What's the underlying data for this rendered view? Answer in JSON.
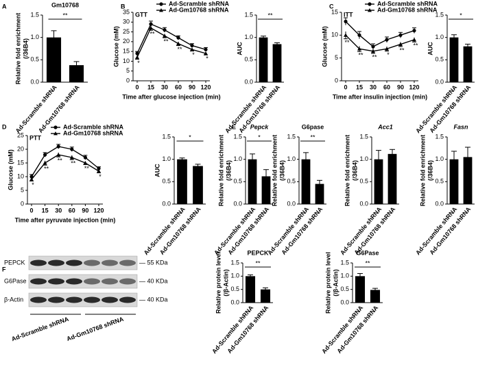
{
  "chart_data": [
    {
      "type": "bar",
      "panel": "A",
      "title": "Gm10768",
      "y_label": [
        "Relative fold enrichment",
        "(/36B4)"
      ],
      "categories": [
        "Ad-Scramble shRNA",
        "Ad-Gm10768 shRNA"
      ],
      "values": [
        1.0,
        0.38
      ],
      "errors": [
        0.15,
        0.08
      ],
      "color": "#000000",
      "ylim": [
        0,
        1.5
      ],
      "yticks": [
        {
          "value": 0,
          "label": "0.0"
        },
        0.5,
        {
          "value": 1,
          "label": "1.0"
        },
        1.5
      ],
      "significance": "**"
    },
    {
      "type": "line",
      "panel": "B",
      "inset_label": "GTT",
      "x_label": "Time after glucose injection (min)",
      "y_label": [
        "Glucose (mM)"
      ],
      "categories": [
        "0",
        "15",
        "30",
        "60",
        "90",
        "120"
      ],
      "series": [
        {
          "name": "Ad-Scramble shRNA",
          "color": "#000000",
          "values": [
            14,
            29,
            26,
            22,
            18,
            16
          ],
          "errors": [
            1,
            1.5,
            1.2,
            1,
            1,
            1
          ]
        },
        {
          "name": "Ad-Gm10768 shRNA",
          "color": "#000000",
          "values": [
            12,
            27,
            23,
            19,
            16,
            14
          ],
          "errors": [
            1,
            1.2,
            1,
            1,
            0.8,
            0.8
          ]
        }
      ],
      "ylim": [
        0,
        35
      ],
      "yticks": [
        0,
        5,
        10,
        15,
        20,
        25,
        30,
        35
      ],
      "point_significance": [
        "*",
        "**",
        "**",
        "**",
        "*",
        "*"
      ]
    },
    {
      "type": "bar",
      "y_label": [
        "AUC"
      ],
      "categories": [
        "Ad-Scramble shRNA",
        "Ad-Gm10768 shRNA"
      ],
      "values": [
        1.0,
        0.85
      ],
      "errors": [
        0.03,
        0.03
      ],
      "color": "#000000",
      "ylim": [
        0,
        1.5
      ],
      "yticks": [
        {
          "value": 0,
          "label": "0.0"
        },
        0.5,
        {
          "value": 1,
          "label": "1.0"
        },
        1.5
      ],
      "significance": "**"
    },
    {
      "type": "line",
      "panel": "C",
      "inset_label": "ITT",
      "x_label": "Time after insulin injection (min)",
      "y_label": [
        "Glucose (mM)"
      ],
      "categories": [
        "0",
        "15",
        "30",
        "60",
        "90",
        "120"
      ],
      "series": [
        {
          "name": "Ad-Scramble shRNA",
          "color": "#000000",
          "values": [
            13,
            10,
            7.5,
            9,
            10,
            11
          ],
          "errors": [
            0.8,
            0.8,
            0.6,
            0.6,
            0.6,
            0.6
          ]
        },
        {
          "name": "Ad-Gm10768 shRNA",
          "color": "#000000",
          "values": [
            10,
            7,
            6.5,
            7,
            8,
            9
          ],
          "errors": [
            0.8,
            0.6,
            0.5,
            0.5,
            0.5,
            0.5
          ]
        }
      ],
      "ylim": [
        0,
        15
      ],
      "yticks": [
        0,
        5,
        10,
        15
      ],
      "point_significance": [
        "**",
        "**",
        "**",
        "*",
        "**",
        "**"
      ]
    },
    {
      "type": "bar",
      "y_label": [
        "AUC"
      ],
      "categories": [
        "Ad-Scramble shRNA",
        "Ad-Gm10768 shRNA"
      ],
      "values": [
        1.0,
        0.8
      ],
      "errors": [
        0.06,
        0.05
      ],
      "color": "#000000",
      "ylim": [
        0,
        1.5
      ],
      "yticks": [
        {
          "value": 0,
          "label": "0.0"
        },
        0.5,
        {
          "value": 1,
          "label": "1.0"
        },
        1.5
      ],
      "significance": "*"
    },
    {
      "type": "line",
      "panel": "D",
      "inset_label": "PTT",
      "x_label": "Time after pyruvate injection (min)",
      "y_label": [
        "Glucose (mM)"
      ],
      "categories": [
        "0",
        "15",
        "30",
        "60",
        "90",
        "120"
      ],
      "series": [
        {
          "name": "Ad-Scramble shRNA",
          "color": "#000000",
          "values": [
            10,
            18,
            21,
            20,
            17,
            13
          ],
          "errors": [
            0.8,
            0.8,
            0.8,
            0.8,
            0.8,
            0.6
          ]
        },
        {
          "name": "Ad-Gm10768 shRNA",
          "color": "#000000",
          "values": [
            9,
            15,
            18,
            17,
            15,
            12
          ],
          "errors": [
            0.6,
            0.8,
            0.8,
            0.8,
            0.6,
            0.6
          ]
        }
      ],
      "ylim": [
        0,
        25
      ],
      "yticks": [
        0,
        5,
        10,
        15,
        20,
        25
      ],
      "point_significance": [
        "*",
        "**",
        "**",
        "**",
        "**",
        "*"
      ]
    },
    {
      "type": "bar",
      "y_label": [
        "AUC"
      ],
      "categories": [
        "Ad-Scramble shRNA",
        "Ad-Gm10768 shRNA"
      ],
      "values": [
        1.0,
        0.85
      ],
      "errors": [
        0.03,
        0.04
      ],
      "color": "#000000",
      "ylim": [
        0,
        1.5
      ],
      "yticks": [
        {
          "value": 0,
          "label": "0.0"
        },
        0.5,
        {
          "value": 1,
          "label": "1.0"
        },
        1.5
      ],
      "significance": "*"
    },
    {
      "type": "bar",
      "panel": "E",
      "title": "Pepck",
      "y_label": [
        "Relative fold enrichment",
        "(/36B4)"
      ],
      "categories": [
        "Ad-Scramble shRNA",
        "Ad-Gm10768 shRNA"
      ],
      "values": [
        1.0,
        0.62
      ],
      "errors": [
        0.12,
        0.15
      ],
      "color": "#000000",
      "ylim": [
        0,
        1.5
      ],
      "yticks": [
        {
          "value": 0,
          "label": "0.0"
        },
        0.5,
        {
          "value": 1,
          "label": "1.0"
        },
        1.5
      ],
      "significance": "*"
    },
    {
      "type": "bar",
      "title": "G6pase",
      "y_label": [
        "Relative fold enrichment",
        "(/36B4)"
      ],
      "categories": [
        "Ad-Scramble shRNA",
        "Ad-Gm10768 shRNA"
      ],
      "values": [
        1.0,
        0.45
      ],
      "errors": [
        0.15,
        0.08
      ],
      "color": "#000000",
      "ylim": [
        0,
        1.5
      ],
      "yticks": [
        {
          "value": 0,
          "label": "0.0"
        },
        0.5,
        {
          "value": 1,
          "label": "1.0"
        },
        1.5
      ],
      "significance": "**"
    },
    {
      "type": "bar",
      "title": "Acc1",
      "y_label": [
        "Relative fold enrichment",
        "(/36B4)"
      ],
      "categories": [
        "Ad-Scramble shRNA",
        "Ad-Gm10768 shRNA"
      ],
      "values": [
        1.0,
        1.12
      ],
      "errors": [
        0.2,
        0.1
      ],
      "color": "#000000",
      "ylim": [
        0,
        1.5
      ],
      "yticks": [
        {
          "value": 0,
          "label": "0.0"
        },
        0.5,
        {
          "value": 1,
          "label": "1.0"
        },
        1.5
      ]
    },
    {
      "type": "bar",
      "title": "Fasn",
      "y_label": [
        "Relative fold enrichment",
        "(/36B4)"
      ],
      "categories": [
        "Ad-Scramble shRNA",
        "Ad-Gm10768 shRNA"
      ],
      "values": [
        1.0,
        1.05
      ],
      "errors": [
        0.18,
        0.22
      ],
      "color": "#000000",
      "ylim": [
        0,
        1.5
      ],
      "yticks": [
        {
          "value": 0,
          "label": "0.0"
        },
        0.5,
        {
          "value": 1,
          "label": "1.0"
        },
        1.5
      ]
    },
    {
      "type": "bar",
      "title": "PEPCK",
      "y_label": [
        "Relative protein level",
        "(/β-Actin)"
      ],
      "categories": [
        "Ad-Scramble shRNA",
        "Ad-Gm10768 shRNA"
      ],
      "values": [
        1.0,
        0.5
      ],
      "errors": [
        0.05,
        0.06
      ],
      "color": "#000000",
      "ylim": [
        0,
        1.5
      ],
      "yticks": [
        {
          "value": 0,
          "label": "0.0"
        },
        0.5,
        {
          "value": 1,
          "label": "1.0"
        },
        1.5
      ],
      "significance": "**"
    },
    {
      "type": "bar",
      "title": "G6Pase",
      "y_label": [
        "Relative protein level",
        "(/β-Actin)"
      ],
      "categories": [
        "Ad-Scramble shRNA",
        "Ad-Gm10768 shRNA"
      ],
      "values": [
        1.0,
        0.48
      ],
      "errors": [
        0.1,
        0.06
      ],
      "color": "#000000",
      "ylim": [
        0,
        1.5
      ],
      "yticks": [
        {
          "value": 0,
          "label": "0.0"
        },
        0.5,
        {
          "value": 1,
          "label": "1.0"
        },
        1.5
      ],
      "significance": "**"
    }
  ],
  "blot": {
    "panel": "F",
    "rows": [
      {
        "protein": "PEPCK",
        "size": "— 55 KDa"
      },
      {
        "protein": "G6Pase",
        "size": "— 40 KDa"
      },
      {
        "protein": "β-Actin",
        "size": "— 40 KDa"
      }
    ],
    "groups": [
      "Ad-Scramble shRNA",
      "Ad-Gm10768 shRNA"
    ]
  }
}
